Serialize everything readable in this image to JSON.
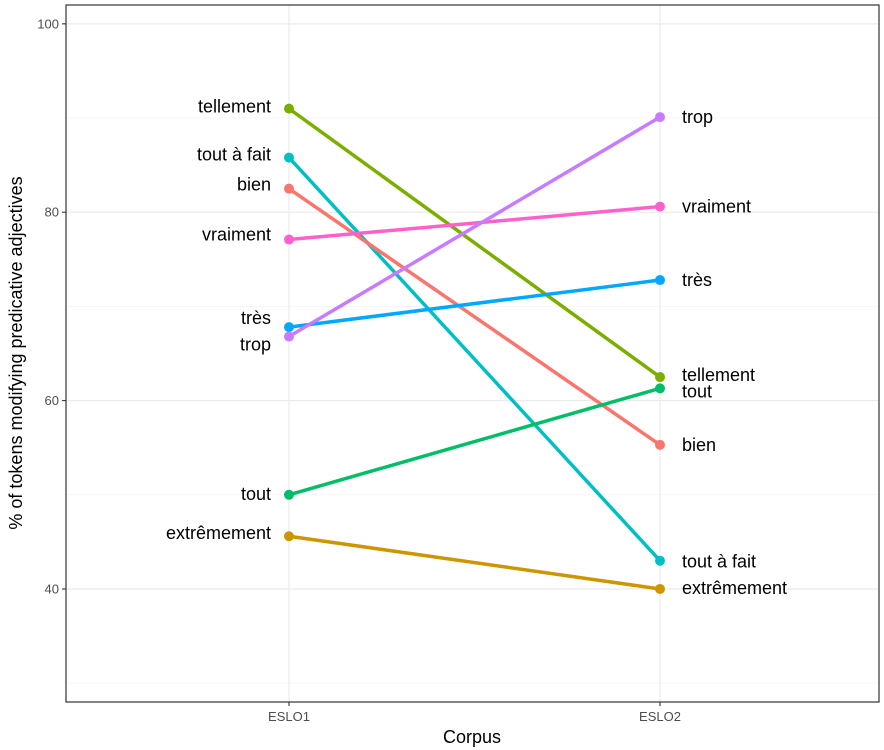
{
  "chart_data": {
    "type": "line",
    "xlabel": "Corpus",
    "ylabel": "% of tokens modifying predicative adjectives",
    "categories": [
      "ESLO1",
      "ESLO2"
    ],
    "ylim": [
      28,
      102
    ],
    "yticks": [
      40,
      60,
      80,
      100
    ],
    "grid": true,
    "legend": "direct labels at line ends",
    "series": [
      {
        "name": "tellement",
        "values": [
          91.0,
          62.5
        ],
        "color": "#7cae00"
      },
      {
        "name": "tout à fait",
        "values": [
          85.8,
          43.0
        ],
        "color": "#00bfc4"
      },
      {
        "name": "bien",
        "values": [
          82.5,
          55.3
        ],
        "color": "#f8766d"
      },
      {
        "name": "vraiment",
        "values": [
          77.1,
          80.6
        ],
        "color": "#ff61cc"
      },
      {
        "name": "très",
        "values": [
          67.8,
          72.8
        ],
        "color": "#00a9ff"
      },
      {
        "name": "trop",
        "values": [
          66.8,
          90.1
        ],
        "color": "#c77cff"
      },
      {
        "name": "tout",
        "values": [
          50.0,
          61.3
        ],
        "color": "#00be67"
      },
      {
        "name": "extrêmement",
        "values": [
          45.6,
          40.0
        ],
        "color": "#cd9600"
      }
    ]
  }
}
